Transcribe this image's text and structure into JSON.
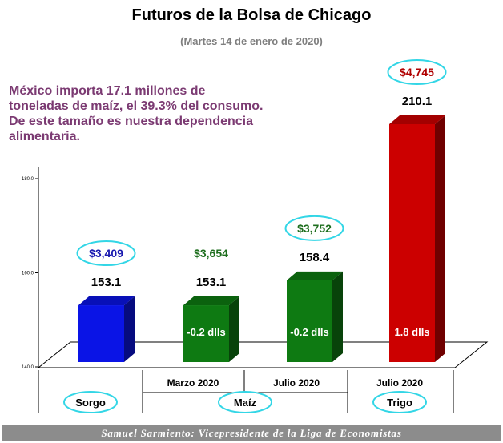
{
  "title": "Futuros de la Bolsa de Chicago",
  "subtitle": "(Martes 14 de enero de 2020)",
  "note": {
    "line1": "México importa 17.1 millones de",
    "line2": "toneladas de maíz, el 39.3% del consumo.",
    "line3": "De este tamaño es nuestra dependencia",
    "line4": "alimentaria."
  },
  "footer": "Samuel Sarmiento: Vicepresidente de la Liga de Economistas",
  "colors": {
    "sorgo": "#0a14e6",
    "maiz": "#0e7a12",
    "trigo": "#cc0000",
    "price_sorgo": "#1a1ab0",
    "price_maiz": "#1e6e1e",
    "price_trigo": "#b00000",
    "ellipse": "#33d6e6"
  },
  "chart_data": {
    "type": "bar",
    "title": "Futuros de la Bolsa de Chicago",
    "subtitle": "(Martes 14 de enero de 2020)",
    "ylim": [
      140,
      180
    ],
    "yticks": [
      "140.0",
      "160.0",
      "180.0"
    ],
    "categories": [
      "",
      "Marzo 2020",
      "Julio 2020",
      "Julio 2020"
    ],
    "groups": [
      "Sorgo",
      "Maíz",
      "Trigo"
    ],
    "series": [
      {
        "values": [
          153.1,
          153.1,
          158.4,
          210.1
        ],
        "value_labels": [
          "153.1",
          "153.1",
          "158.4",
          "210.1"
        ],
        "price_labels": [
          "$3,409",
          "$3,654",
          "$3,752",
          "$4,745"
        ],
        "change_labels": [
          "",
          "-0.2 dlls",
          "-0.2 dlls",
          "1.8 dlls"
        ]
      }
    ]
  }
}
